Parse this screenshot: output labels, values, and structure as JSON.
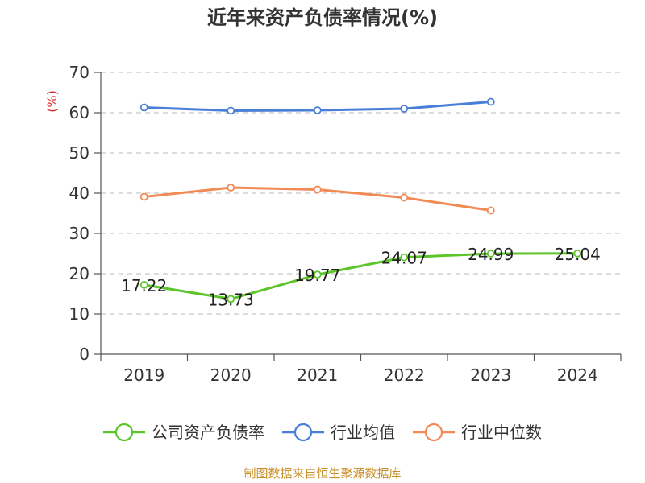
{
  "chart_data": {
    "type": "line",
    "title": "近年来资产负债率情况(%)",
    "ylabel": "(%)",
    "xlabel": "",
    "categories": [
      "2019",
      "2020",
      "2021",
      "2022",
      "2023",
      "2024"
    ],
    "ylim": [
      0,
      70
    ],
    "yticks": [
      0,
      10,
      20,
      30,
      40,
      50,
      60,
      70
    ],
    "grid": true,
    "legend_position": "bottom",
    "series": [
      {
        "name": "公司资产负债率",
        "color": "#5cc52a",
        "values": [
          17.22,
          13.73,
          19.77,
          24.07,
          24.99,
          25.04
        ],
        "labels": [
          "17.22",
          "13.73",
          "19.77",
          "24.07",
          "24.99",
          "25.04"
        ]
      },
      {
        "name": "行业均值",
        "color": "#4a7fd8",
        "values": [
          61.3,
          60.5,
          60.6,
          61.0,
          62.7,
          null
        ],
        "labels": []
      },
      {
        "name": "行业中位数",
        "color": "#f28a55",
        "values": [
          39.1,
          41.4,
          40.9,
          38.9,
          35.7,
          null
        ],
        "labels": []
      }
    ]
  },
  "source_note": "制图数据来自恒生聚源数据库"
}
